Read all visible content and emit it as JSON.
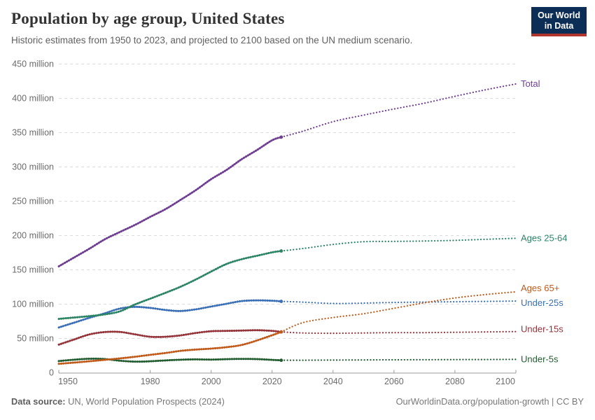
{
  "header": {
    "title": "Population by age group, United States",
    "subtitle": "Historic estimates from 1950 to 2023, and projected to 2100 based on the UN medium scenario."
  },
  "logo": {
    "line1": "Our World",
    "line2": "in Data",
    "bg_color": "#0c2d56",
    "bar_color": "#b0352c"
  },
  "footer": {
    "datasource_label": "Data source:",
    "datasource_text": " UN, World Population Prospects (2024)",
    "right_text": "OurWorldinData.org/population-growth | CC BY"
  },
  "chart_data": {
    "type": "line",
    "unit": "million people",
    "historic_end_year": 2023,
    "xlim": [
      1950,
      2100
    ],
    "ylim": [
      0,
      450
    ],
    "grid": "dashed-horizontal",
    "legend_position": "right-edge-labels",
    "xticks": [
      1950,
      1980,
      2000,
      2020,
      2040,
      2060,
      2080,
      2100
    ],
    "yticks": [
      {
        "value": 0,
        "label": "0"
      },
      {
        "value": 50,
        "label": "50 million"
      },
      {
        "value": 100,
        "label": "100 million"
      },
      {
        "value": 150,
        "label": "150 million"
      },
      {
        "value": 200,
        "label": "200 million"
      },
      {
        "value": 250,
        "label": "250 million"
      },
      {
        "value": 300,
        "label": "300 million"
      },
      {
        "value": 350,
        "label": "350 million"
      },
      {
        "value": 400,
        "label": "400 million"
      },
      {
        "value": 450,
        "label": "450 million"
      }
    ],
    "years_historic": [
      1950,
      1955,
      1960,
      1965,
      1970,
      1975,
      1980,
      1985,
      1990,
      1995,
      2000,
      2005,
      2010,
      2015,
      2020,
      2023
    ],
    "years_projected": [
      2023,
      2030,
      2040,
      2050,
      2060,
      2070,
      2080,
      2090,
      2100
    ],
    "series": [
      {
        "name": "total",
        "label": "Total",
        "color": "#6d3e91",
        "historic": [
          155.1,
          168.0,
          180.7,
          194.3,
          205.1,
          215.5,
          227.2,
          238.5,
          252.1,
          266.3,
          282.2,
          295.5,
          311.2,
          324.6,
          338.9,
          343.5
        ],
        "projected": [
          343.5,
          352.0,
          366.0,
          375.5,
          384.5,
          393.0,
          403.0,
          412.5,
          421.0
        ]
      },
      {
        "name": "ages-25-64",
        "label": "Ages 25-64",
        "color": "#2c8465",
        "historic": [
          78.5,
          80.5,
          82.5,
          85.0,
          89.5,
          99.5,
          108.0,
          116.5,
          125.5,
          136.0,
          147.5,
          158.5,
          165.5,
          170.5,
          175.5,
          177.5
        ],
        "projected": [
          177.5,
          181.0,
          187.0,
          191.0,
          191.5,
          192.0,
          193.0,
          194.5,
          196.0
        ]
      },
      {
        "name": "ages-65-plus",
        "label": "Ages 65+",
        "color": "#c05a1b",
        "historic": [
          13.0,
          14.8,
          16.7,
          18.8,
          20.9,
          23.3,
          26.1,
          28.8,
          31.9,
          33.8,
          35.2,
          37.2,
          40.5,
          47.0,
          54.7,
          59.5
        ],
        "projected": [
          59.5,
          73.0,
          80.5,
          86.0,
          94.0,
          102.0,
          109.0,
          114.0,
          118.0
        ]
      },
      {
        "name": "under-25s",
        "label": "Under-25s",
        "color": "#3b6fb5",
        "historic": [
          66.0,
          73.0,
          80.0,
          86.5,
          93.5,
          96.0,
          94.5,
          91.5,
          90.0,
          92.5,
          96.5,
          100.5,
          104.5,
          105.5,
          105.0,
          104.0
        ],
        "projected": [
          104.0,
          103.0,
          101.0,
          101.5,
          102.5,
          103.0,
          103.5,
          104.0,
          104.5
        ]
      },
      {
        "name": "under-15s",
        "label": "Under-15s",
        "color": "#93343a",
        "historic": [
          41.0,
          48.5,
          55.8,
          59.3,
          59.5,
          56.0,
          52.5,
          52.5,
          54.5,
          58.0,
          60.5,
          61.0,
          61.5,
          62.0,
          61.0,
          59.5
        ],
        "projected": [
          59.5,
          58.0,
          57.5,
          58.0,
          58.5,
          58.5,
          59.0,
          59.5,
          60.0
        ]
      },
      {
        "name": "under-5s",
        "label": "Under-5s",
        "color": "#235c31",
        "historic": [
          17.0,
          19.0,
          20.4,
          20.0,
          17.6,
          16.2,
          16.7,
          18.0,
          19.0,
          19.5,
          19.2,
          19.8,
          20.2,
          19.9,
          18.8,
          18.2
        ],
        "projected": [
          18.2,
          18.3,
          18.5,
          18.7,
          18.9,
          19.0,
          19.2,
          19.3,
          19.5
        ]
      }
    ]
  }
}
